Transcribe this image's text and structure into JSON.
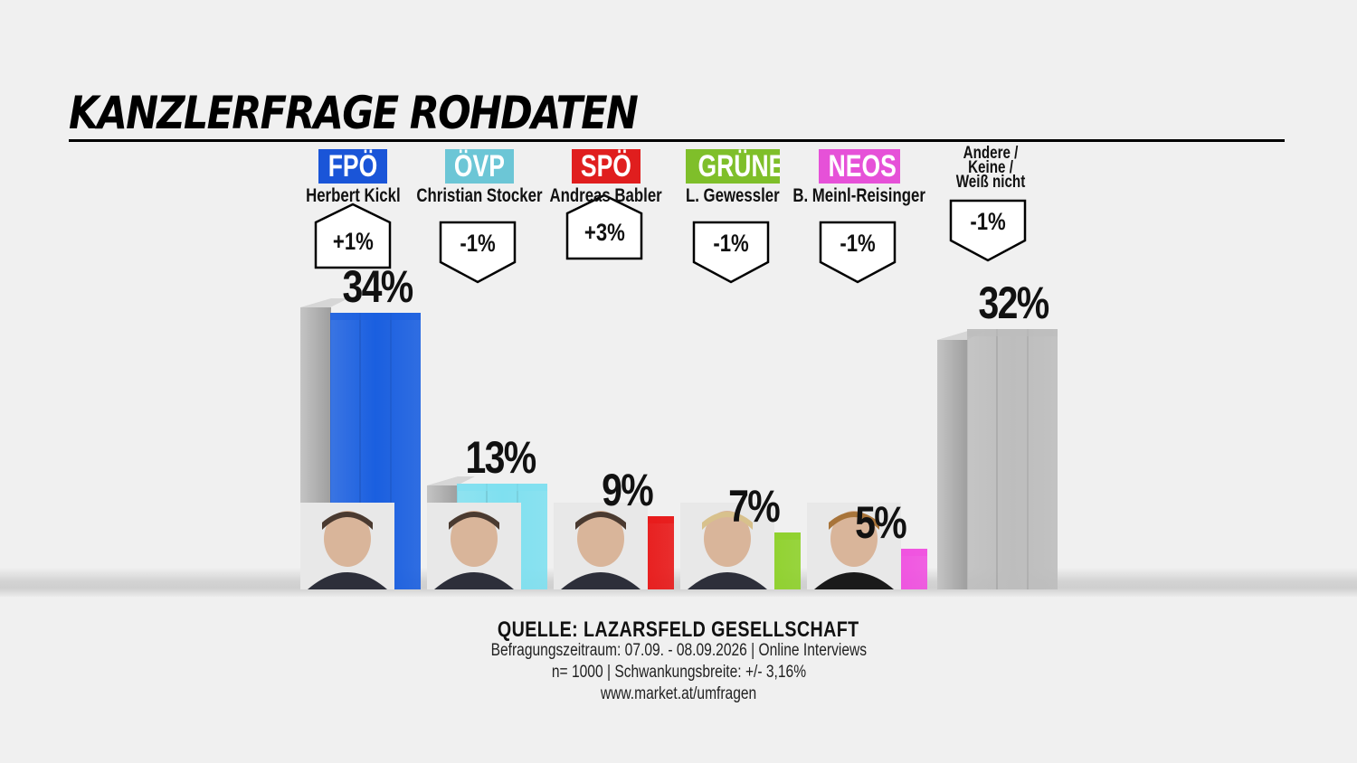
{
  "title": "KANZLERFRAGE ROHDATEN",
  "chart_data": {
    "type": "bar",
    "title": "KANZLERFRAGE ROHDATEN",
    "ylim": [
      0,
      34
    ],
    "categories": [
      "FPÖ",
      "ÖVP",
      "SPÖ",
      "GRÜNE",
      "NEOS",
      "Andere / Keine / Weiß nicht"
    ],
    "candidates": [
      "Herbert Kickl",
      "Christian Stocker",
      "Andreas Babler",
      "L. Gewessler",
      "B. Meinl-Reisinger",
      ""
    ],
    "values": [
      34,
      13,
      9,
      7,
      5,
      32
    ],
    "value_labels": [
      "34%",
      "13%",
      "9%",
      "7%",
      "5%",
      "32%"
    ],
    "changes": [
      "+1%",
      "-1%",
      "+3%",
      "-1%",
      "-1%",
      "-1%"
    ],
    "colors": [
      "#1a5fe0",
      "#7fe0f0",
      "#e81818",
      "#8ed12a",
      "#f050e0",
      "#bdbdbd"
    ],
    "label_colors": [
      "#1a55d8",
      "#6cc6d6",
      "#e01e1e",
      "#7fbf2a",
      "#e651d8",
      ""
    ]
  },
  "other_label_lines": [
    "Andere /",
    "Keine /",
    "Weiß nicht"
  ],
  "source": {
    "title": "QUELLE: LAZARSFELD GESELLSCHAFT",
    "line1": "Befragungszeitraum: 07.09. - 08.09.2026 | Online Interviews",
    "line2": "n= 1000 | Schwankungsbreite: +/- 3,16%",
    "line3": "www.market.at/umfragen"
  }
}
